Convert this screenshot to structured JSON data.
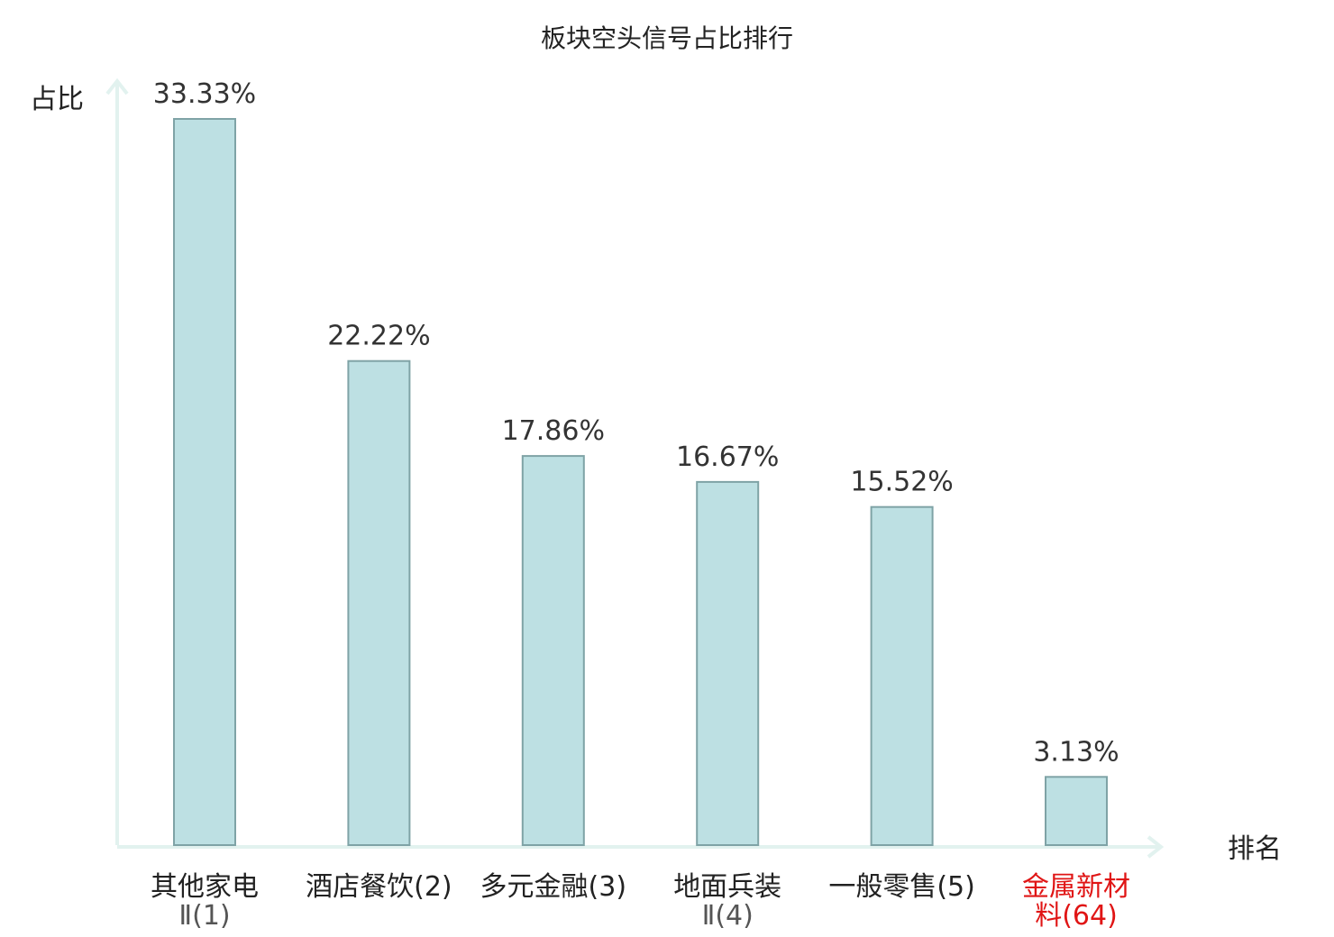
{
  "chart_data": {
    "type": "bar",
    "title": "板块空头信号占比排行",
    "ylabel": "占比",
    "xlabel": "排名",
    "ylim": [
      0,
      35
    ],
    "grid": false,
    "categories": [
      {
        "line1": "其他家电",
        "line2": "Ⅱ(1)",
        "highlight": false
      },
      {
        "line1": "酒店餐饮(2)",
        "line2": "",
        "highlight": false
      },
      {
        "line1": "多元金融(3)",
        "line2": "",
        "highlight": false
      },
      {
        "line1": "地面兵装",
        "line2": "Ⅱ(4)",
        "highlight": false
      },
      {
        "line1": "一般零售(5)",
        "line2": "",
        "highlight": false
      },
      {
        "line1": "金属新材",
        "line2": "料(64)",
        "highlight": true
      }
    ],
    "values": [
      33.33,
      22.22,
      17.86,
      16.67,
      15.52,
      3.13
    ],
    "value_labels": [
      "33.33%",
      "22.22%",
      "17.86%",
      "16.67%",
      "15.52%",
      "3.13%"
    ]
  },
  "colors": {
    "bar_fill": "#bde0e3",
    "bar_stroke": "#7fa3a6",
    "axis": "#e2f2ef",
    "highlight_text": "#e01515",
    "text": "#222222"
  }
}
